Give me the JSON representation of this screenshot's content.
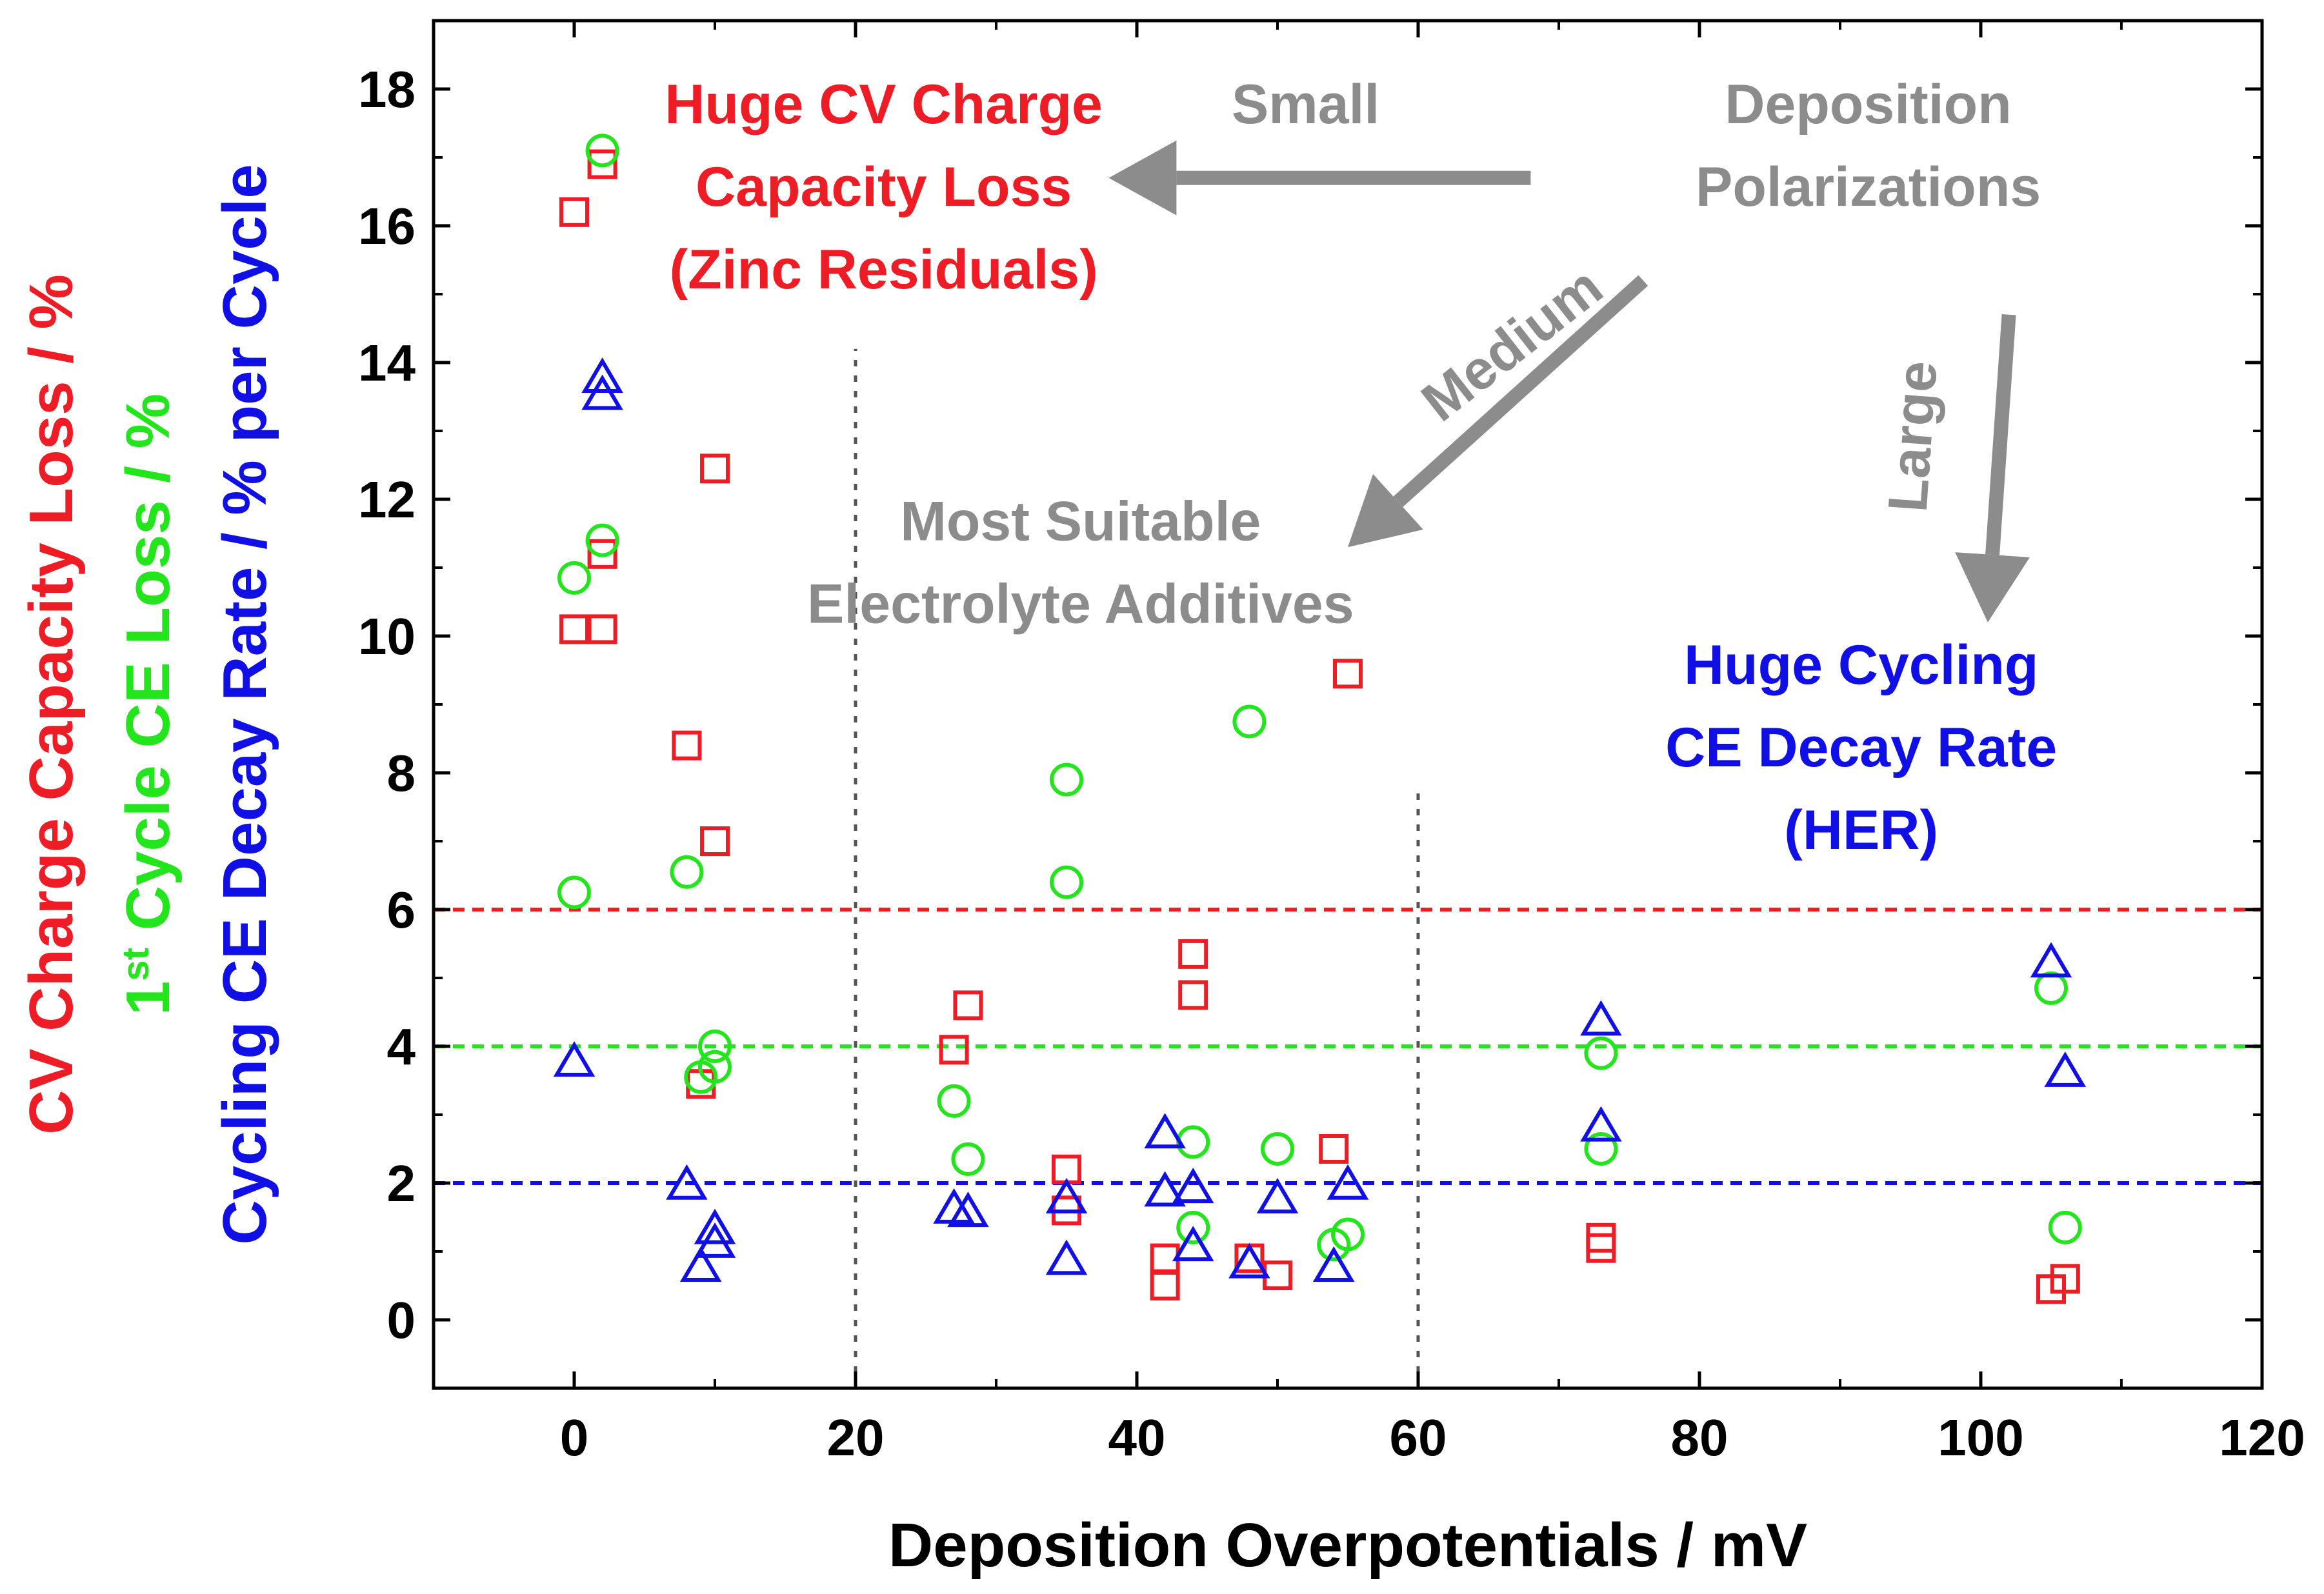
{
  "chart_data": {
    "type": "scatter",
    "xlabel": "Deposition Overpotentials / mV",
    "ylabel_lines": [
      {
        "parts": [
          {
            "text": "CV Charge Capacity Loss / %",
            "color": "#ee1c25"
          }
        ]
      },
      {
        "parts": [
          {
            "text": "1",
            "color": "#22e51b"
          },
          {
            "text": "st",
            "color": "#22e51b",
            "sup": true
          },
          {
            "text": " Cycle CE Loss / %",
            "color": "#22e51b"
          }
        ]
      },
      {
        "parts": [
          {
            "text": "Cycling ",
            "color": "#1010e6"
          },
          {
            "text": "CE Decay Rate / % per Cycle",
            "color": "#1010e6"
          }
        ]
      }
    ],
    "xlim": [
      -10,
      120
    ],
    "ylim": [
      -1,
      19
    ],
    "x_ticks": [
      0,
      20,
      40,
      60,
      80,
      100,
      120
    ],
    "y_ticks": [
      0,
      2,
      4,
      6,
      8,
      10,
      12,
      14,
      16,
      18
    ],
    "grid": false,
    "series": [
      {
        "name": "CV Charge Capacity Loss",
        "marker": "square",
        "color": "#ee1c25",
        "points": [
          [
            0,
            16.2
          ],
          [
            2,
            16.9
          ],
          [
            0,
            10.1
          ],
          [
            2,
            10.1
          ],
          [
            2,
            11.2
          ],
          [
            8,
            8.4
          ],
          [
            10,
            12.45
          ],
          [
            10,
            7.0
          ],
          [
            9,
            3.45
          ],
          [
            27,
            3.95
          ],
          [
            28,
            4.6
          ],
          [
            35,
            2.2
          ],
          [
            35,
            1.6
          ],
          [
            44,
            5.35
          ],
          [
            44,
            4.75
          ],
          [
            42,
            0.9
          ],
          [
            42,
            0.5
          ],
          [
            48,
            0.9
          ],
          [
            50,
            0.65
          ],
          [
            54,
            2.5
          ],
          [
            55,
            9.45
          ],
          [
            73,
            1.2
          ],
          [
            73,
            1.05
          ],
          [
            105,
            0.45
          ],
          [
            106,
            0.6
          ]
        ]
      },
      {
        "name": "1st Cycle CE Loss",
        "marker": "circle",
        "color": "#22e51b",
        "points": [
          [
            2,
            17.1
          ],
          [
            2,
            11.4
          ],
          [
            0,
            10.85
          ],
          [
            0,
            6.25
          ],
          [
            8,
            6.55
          ],
          [
            9,
            3.55
          ],
          [
            10,
            4.0
          ],
          [
            10,
            3.7
          ],
          [
            27,
            3.2
          ],
          [
            28,
            2.35
          ],
          [
            35,
            7.9
          ],
          [
            35,
            6.4
          ],
          [
            44,
            2.6
          ],
          [
            44,
            1.35
          ],
          [
            48,
            8.75
          ],
          [
            50,
            2.5
          ],
          [
            54,
            1.1
          ],
          [
            55,
            1.25
          ],
          [
            73,
            3.9
          ],
          [
            73,
            2.5
          ],
          [
            105,
            4.85
          ],
          [
            106,
            1.35
          ]
        ]
      },
      {
        "name": "Cycling CE Decay Rate",
        "marker": "triangle",
        "color": "#1010e6",
        "points": [
          [
            2,
            13.75
          ],
          [
            2,
            13.5
          ],
          [
            0,
            3.75
          ],
          [
            8,
            1.95
          ],
          [
            9,
            0.75
          ],
          [
            10,
            1.3
          ],
          [
            10,
            1.1
          ],
          [
            27,
            1.6
          ],
          [
            28,
            1.55
          ],
          [
            35,
            1.75
          ],
          [
            35,
            0.85
          ],
          [
            42,
            2.7
          ],
          [
            42,
            1.85
          ],
          [
            44,
            1.9
          ],
          [
            44,
            1.05
          ],
          [
            48,
            0.8
          ],
          [
            50,
            1.75
          ],
          [
            54,
            0.75
          ],
          [
            55,
            1.95
          ],
          [
            73,
            4.35
          ],
          [
            73,
            2.8
          ],
          [
            105,
            5.2
          ],
          [
            106,
            3.6
          ]
        ]
      }
    ],
    "reference_lines": [
      {
        "axis": "y",
        "value": 6,
        "color": "#ee1c25",
        "style": "dashed"
      },
      {
        "axis": "y",
        "value": 4,
        "color": "#22e51b",
        "style": "dashed"
      },
      {
        "axis": "y",
        "value": 2,
        "color": "#1010e6",
        "style": "dashed"
      },
      {
        "axis": "x",
        "value": 20,
        "color": "#555555",
        "style": "dotted",
        "from": -1,
        "to": 14.2
      },
      {
        "axis": "x",
        "value": 60,
        "color": "#555555",
        "style": "dotted",
        "from": -1,
        "to": 7.8
      }
    ],
    "annotations": [
      {
        "lines": [
          "Huge CV Charge",
          "Capacity Loss",
          "(Zinc Residuals)"
        ],
        "color": "#ee1c25",
        "x": 22,
        "y": 17.5,
        "anchor": "middle"
      },
      {
        "lines": [
          "Small"
        ],
        "color": "#8c8c8c",
        "x": 52,
        "y": 17.5,
        "anchor": "middle"
      },
      {
        "lines": [
          "Deposition",
          "Polarizations"
        ],
        "color": "#8c8c8c",
        "x": 92,
        "y": 17.5,
        "anchor": "middle"
      },
      {
        "lines": [
          "Most Suitable",
          "Electrolyte Additives"
        ],
        "color": "#8c8c8c",
        "x": 36,
        "y": 11.4,
        "anchor": "middle"
      },
      {
        "lines": [
          "Huge Cycling",
          "CE Decay Rate",
          "(HER)"
        ],
        "color": "#1010e6",
        "x": 91.5,
        "y": 9.3,
        "anchor": "middle"
      },
      {
        "lines": [
          "Medium"
        ],
        "color": "#8c8c8c",
        "x": 67.5,
        "y": 14.05,
        "anchor": "middle",
        "rotate": -38
      },
      {
        "lines": [
          "Large"
        ],
        "color": "#8c8c8c",
        "x": 96.5,
        "y": 12.9,
        "anchor": "middle",
        "rotate": -86
      }
    ],
    "arrows": [
      {
        "label": "small",
        "from": [
          68,
          16.7
        ],
        "to": [
          38,
          16.7
        ],
        "color": "#8c8c8c"
      },
      {
        "label": "medium",
        "from": [
          76,
          15.2
        ],
        "to": [
          55,
          11.3
        ],
        "color": "#8c8c8c"
      },
      {
        "label": "large",
        "from": [
          102,
          14.7
        ],
        "to": [
          100.5,
          10.2
        ],
        "color": "#8c8c8c"
      }
    ]
  }
}
